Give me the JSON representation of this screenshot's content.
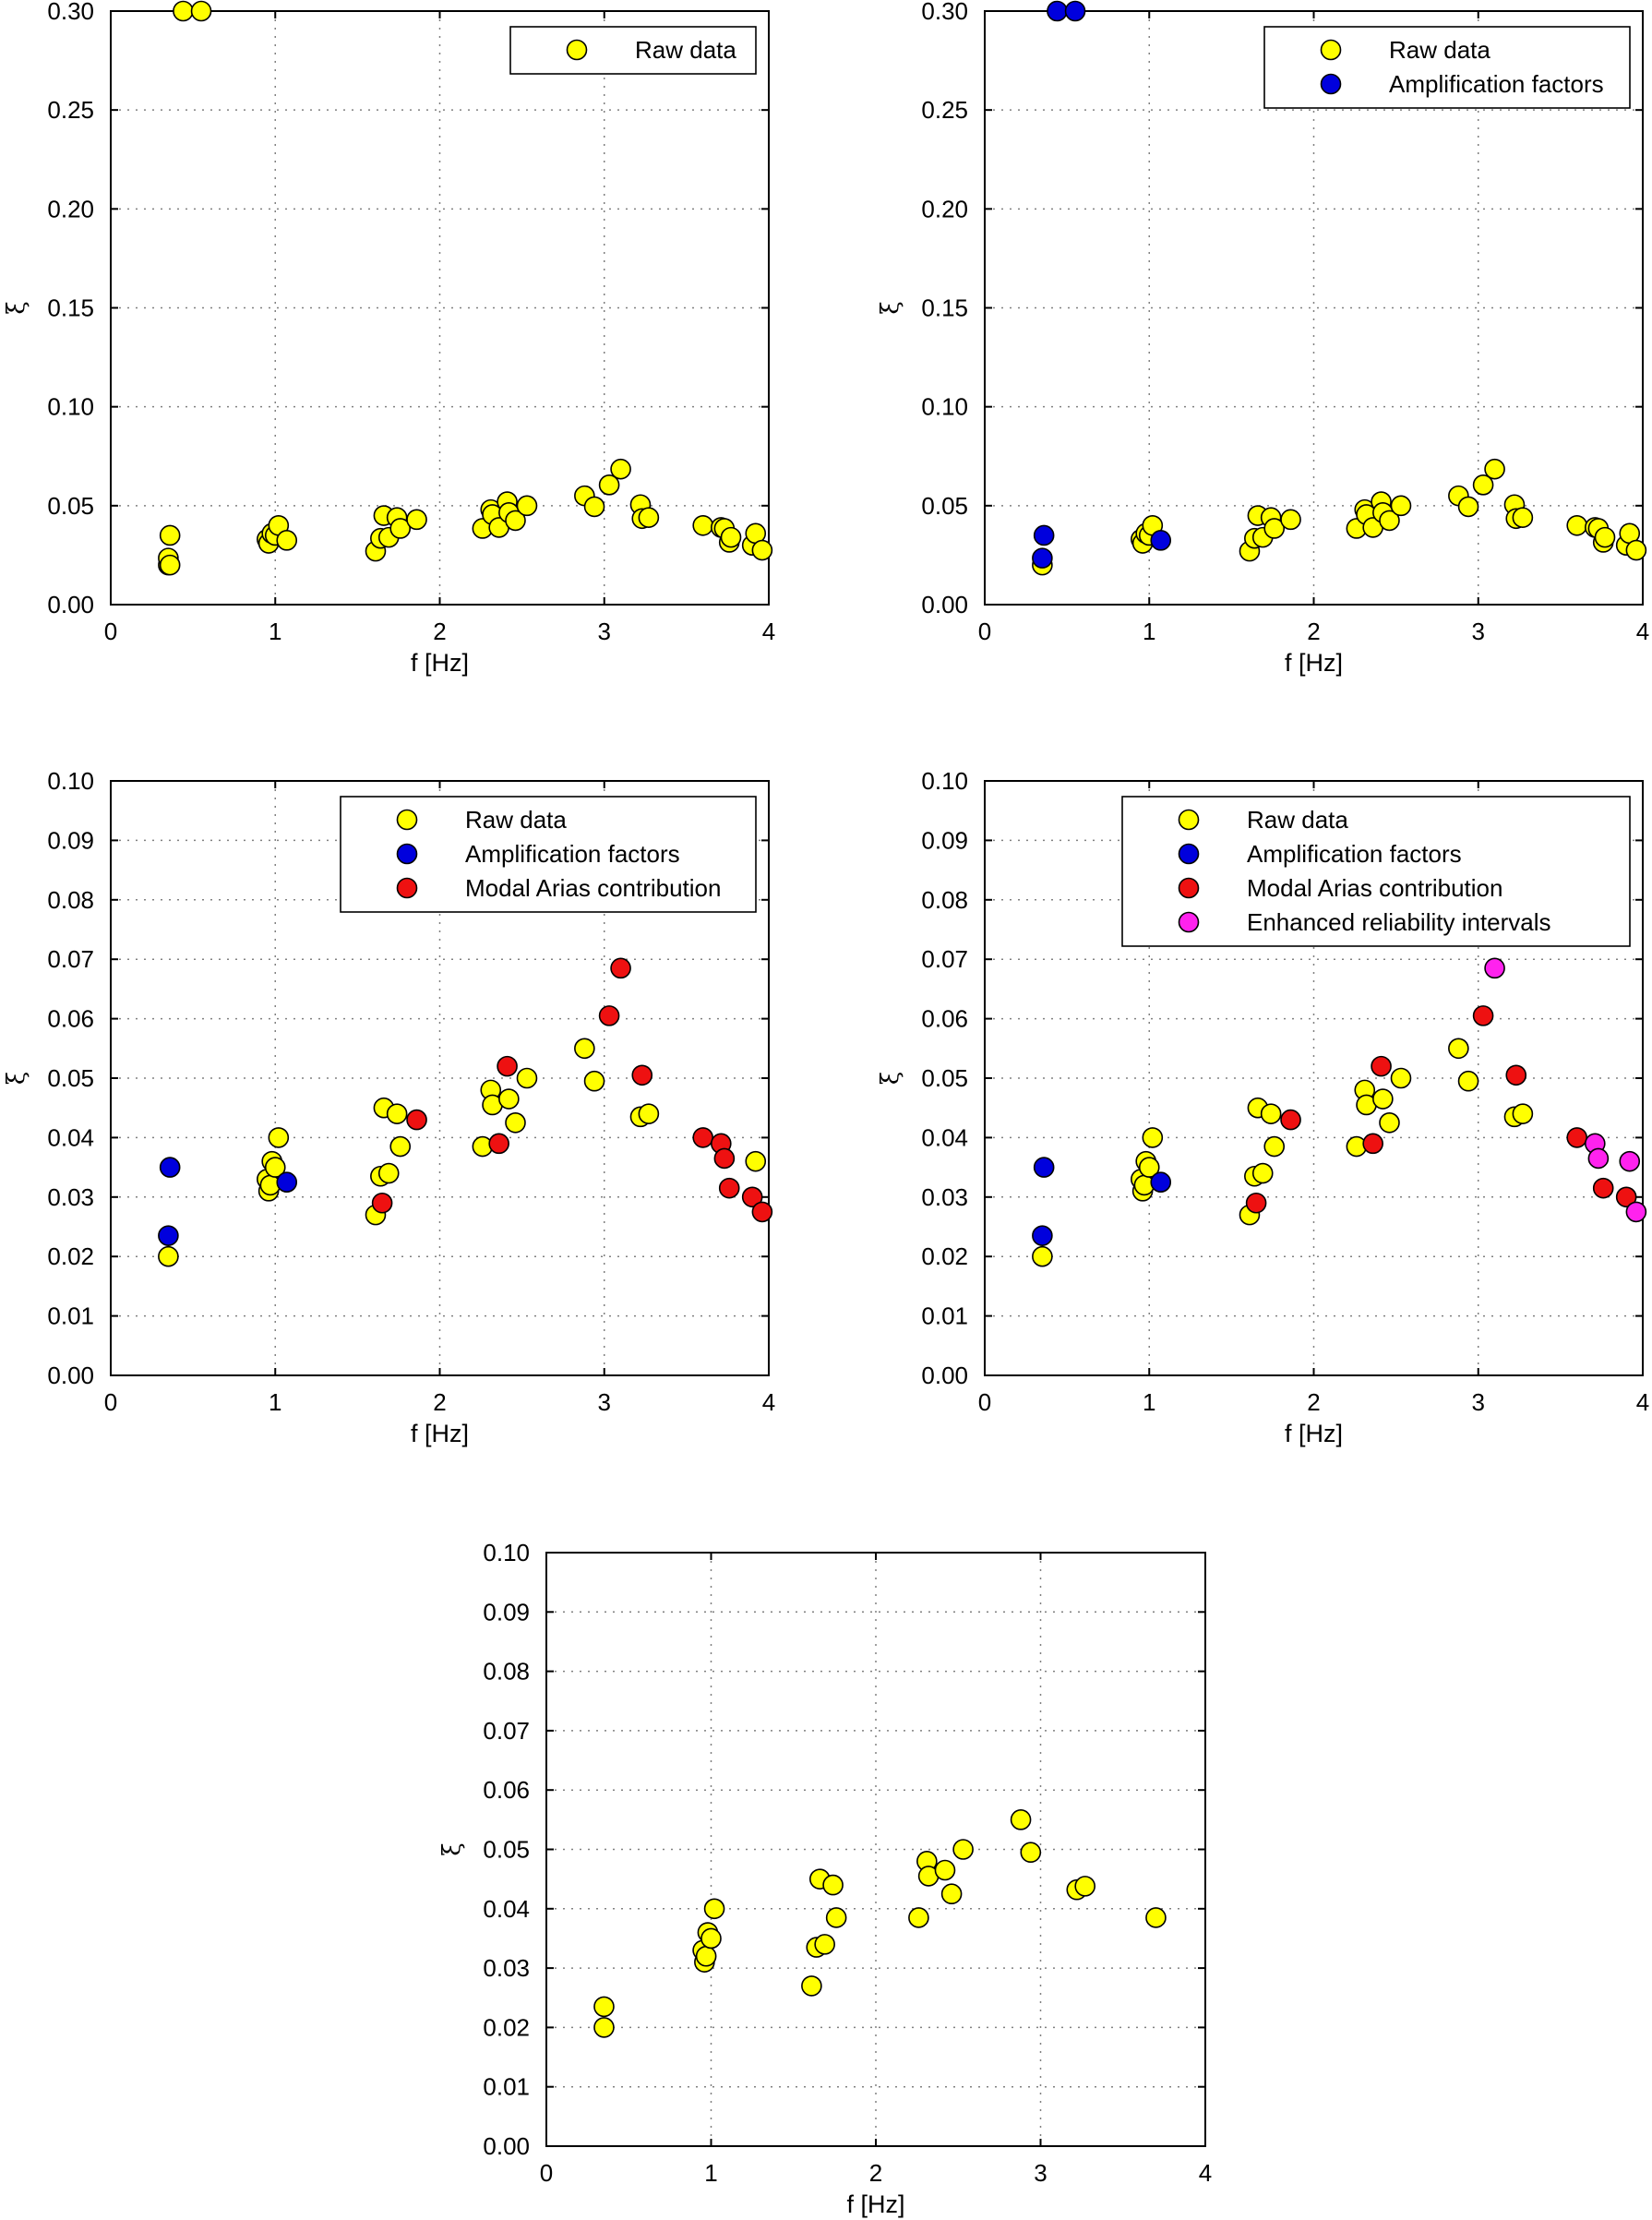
{
  "colors": {
    "raw": "#ffff00",
    "amplification": "#0000dd",
    "arias": "#ee1111",
    "enhanced": "#ff22ee",
    "edge": "#000000",
    "grid": "#808080"
  },
  "chart_data": [
    {
      "id": "panel-a",
      "type": "scatter",
      "xlabel": "f [Hz]",
      "ylabel": "ξ",
      "xlim": [
        0,
        4
      ],
      "ylim": [
        0,
        0.3
      ],
      "xticks": [
        0,
        1,
        2,
        3,
        4
      ],
      "xtick_labels": [
        "0",
        "1",
        "2",
        "3",
        "4"
      ],
      "yticks": [
        0,
        0.05,
        0.1,
        0.15,
        0.2,
        0.25,
        0.3
      ],
      "ytick_labels": [
        "0.00",
        "0.05",
        "0.10",
        "0.15",
        "0.20",
        "0.25",
        "0.30"
      ],
      "grid": true,
      "legend_position": "top-right",
      "legend": [
        {
          "label": "Raw data",
          "color_key": "raw"
        }
      ],
      "series": [
        {
          "name": "Raw data",
          "color_key": "raw",
          "points": [
            [
              0.35,
              0.02
            ],
            [
              0.35,
              0.0235
            ],
            [
              0.36,
              0.035
            ],
            [
              0.36,
              0.02
            ],
            [
              0.44,
              0.3
            ],
            [
              0.55,
              0.3
            ],
            [
              0.95,
              0.033
            ],
            [
              0.96,
              0.031
            ],
            [
              0.98,
              0.036
            ],
            [
              1.0,
              0.035
            ],
            [
              1.02,
              0.04
            ],
            [
              1.07,
              0.0325
            ],
            [
              1.61,
              0.027
            ],
            [
              1.64,
              0.0335
            ],
            [
              1.66,
              0.045
            ],
            [
              1.69,
              0.034
            ],
            [
              1.74,
              0.044
            ],
            [
              1.76,
              0.0385
            ],
            [
              1.86,
              0.043
            ],
            [
              2.26,
              0.0385
            ],
            [
              2.31,
              0.048
            ],
            [
              2.32,
              0.0455
            ],
            [
              2.36,
              0.039
            ],
            [
              2.41,
              0.052
            ],
            [
              2.42,
              0.0465
            ],
            [
              2.46,
              0.0425
            ],
            [
              2.53,
              0.05
            ],
            [
              2.88,
              0.055
            ],
            [
              2.94,
              0.0495
            ],
            [
              3.03,
              0.0605
            ],
            [
              3.1,
              0.0685
            ],
            [
              3.22,
              0.0505
            ],
            [
              3.23,
              0.0435
            ],
            [
              3.27,
              0.044
            ],
            [
              3.6,
              0.04
            ],
            [
              3.71,
              0.039
            ],
            [
              3.73,
              0.0385
            ],
            [
              3.76,
              0.0315
            ],
            [
              3.77,
              0.034
            ],
            [
              3.9,
              0.03
            ],
            [
              3.92,
              0.036
            ],
            [
              3.96,
              0.0275
            ]
          ]
        }
      ]
    },
    {
      "id": "panel-b",
      "type": "scatter",
      "xlabel": "f [Hz]",
      "ylabel": "ξ",
      "xlim": [
        0,
        4
      ],
      "ylim": [
        0,
        0.3
      ],
      "xticks": [
        0,
        1,
        2,
        3,
        4
      ],
      "xtick_labels": [
        "0",
        "1",
        "2",
        "3",
        "4"
      ],
      "yticks": [
        0,
        0.05,
        0.1,
        0.15,
        0.2,
        0.25,
        0.3
      ],
      "ytick_labels": [
        "0.00",
        "0.05",
        "0.10",
        "0.15",
        "0.20",
        "0.25",
        "0.30"
      ],
      "grid": true,
      "legend_position": "top-right",
      "legend": [
        {
          "label": "Raw data",
          "color_key": "raw"
        },
        {
          "label": "Amplification factors",
          "color_key": "amplification"
        }
      ],
      "series": [
        {
          "name": "Raw data",
          "color_key": "raw",
          "points": [
            [
              0.35,
              0.02
            ],
            [
              0.95,
              0.033
            ],
            [
              0.96,
              0.031
            ],
            [
              0.98,
              0.036
            ],
            [
              1.0,
              0.035
            ],
            [
              1.02,
              0.04
            ],
            [
              1.61,
              0.027
            ],
            [
              1.64,
              0.0335
            ],
            [
              1.66,
              0.045
            ],
            [
              1.69,
              0.034
            ],
            [
              1.74,
              0.044
            ],
            [
              1.76,
              0.0385
            ],
            [
              1.86,
              0.043
            ],
            [
              2.26,
              0.0385
            ],
            [
              2.31,
              0.048
            ],
            [
              2.32,
              0.0455
            ],
            [
              2.36,
              0.039
            ],
            [
              2.41,
              0.052
            ],
            [
              2.42,
              0.0465
            ],
            [
              2.46,
              0.0425
            ],
            [
              2.53,
              0.05
            ],
            [
              2.88,
              0.055
            ],
            [
              2.94,
              0.0495
            ],
            [
              3.03,
              0.0605
            ],
            [
              3.1,
              0.0685
            ],
            [
              3.22,
              0.0505
            ],
            [
              3.23,
              0.0435
            ],
            [
              3.27,
              0.044
            ],
            [
              3.6,
              0.04
            ],
            [
              3.71,
              0.039
            ],
            [
              3.73,
              0.0385
            ],
            [
              3.76,
              0.0315
            ],
            [
              3.77,
              0.034
            ],
            [
              3.9,
              0.03
            ],
            [
              3.92,
              0.036
            ],
            [
              3.96,
              0.0275
            ]
          ]
        },
        {
          "name": "Amplification factors",
          "color_key": "amplification",
          "points": [
            [
              0.35,
              0.0235
            ],
            [
              0.36,
              0.035
            ],
            [
              1.07,
              0.0325
            ],
            [
              0.44,
              0.3
            ],
            [
              0.55,
              0.3
            ]
          ]
        }
      ]
    },
    {
      "id": "panel-c",
      "type": "scatter",
      "xlabel": "f [Hz]",
      "ylabel": "ξ",
      "xlim": [
        0,
        4
      ],
      "ylim": [
        0,
        0.1
      ],
      "xticks": [
        0,
        1,
        2,
        3,
        4
      ],
      "xtick_labels": [
        "0",
        "1",
        "2",
        "3",
        "4"
      ],
      "yticks": [
        0,
        0.01,
        0.02,
        0.03,
        0.04,
        0.05,
        0.06,
        0.07,
        0.08,
        0.09,
        0.1
      ],
      "ytick_labels": [
        "0.00",
        "0.01",
        "0.02",
        "0.03",
        "0.04",
        "0.05",
        "0.06",
        "0.07",
        "0.08",
        "0.09",
        "0.10"
      ],
      "grid": true,
      "legend_position": "top-right",
      "legend": [
        {
          "label": "Raw data",
          "color_key": "raw"
        },
        {
          "label": "Amplification factors",
          "color_key": "amplification"
        },
        {
          "label": "Modal Arias contribution",
          "color_key": "arias"
        }
      ],
      "series": [
        {
          "name": "Raw data",
          "color_key": "raw",
          "points": [
            [
              0.35,
              0.02
            ],
            [
              0.95,
              0.033
            ],
            [
              0.96,
              0.031
            ],
            [
              0.97,
              0.032
            ],
            [
              0.98,
              0.036
            ],
            [
              1.0,
              0.035
            ],
            [
              1.02,
              0.04
            ],
            [
              1.61,
              0.027
            ],
            [
              1.64,
              0.0335
            ],
            [
              1.66,
              0.045
            ],
            [
              1.69,
              0.034
            ],
            [
              1.74,
              0.044
            ],
            [
              1.76,
              0.0385
            ],
            [
              2.26,
              0.0385
            ],
            [
              2.31,
              0.048
            ],
            [
              2.32,
              0.0455
            ],
            [
              2.42,
              0.0465
            ],
            [
              2.46,
              0.0425
            ],
            [
              2.53,
              0.05
            ],
            [
              2.88,
              0.055
            ],
            [
              2.94,
              0.0495
            ],
            [
              3.22,
              0.0435
            ],
            [
              3.27,
              0.044
            ],
            [
              3.92,
              0.036
            ]
          ]
        },
        {
          "name": "Amplification factors",
          "color_key": "amplification",
          "points": [
            [
              0.35,
              0.0235
            ],
            [
              0.36,
              0.035
            ],
            [
              1.07,
              0.0325
            ]
          ]
        },
        {
          "name": "Modal Arias contribution",
          "color_key": "arias",
          "points": [
            [
              1.65,
              0.029
            ],
            [
              1.86,
              0.043
            ],
            [
              2.36,
              0.039
            ],
            [
              2.41,
              0.052
            ],
            [
              3.03,
              0.0605
            ],
            [
              3.1,
              0.0685
            ],
            [
              3.23,
              0.0505
            ],
            [
              3.6,
              0.04
            ],
            [
              3.71,
              0.039
            ],
            [
              3.73,
              0.0365
            ],
            [
              3.76,
              0.0315
            ],
            [
              3.9,
              0.03
            ],
            [
              3.96,
              0.0275
            ]
          ]
        }
      ]
    },
    {
      "id": "panel-d",
      "type": "scatter",
      "xlabel": "f [Hz]",
      "ylabel": "ξ",
      "xlim": [
        0,
        4
      ],
      "ylim": [
        0,
        0.1
      ],
      "xticks": [
        0,
        1,
        2,
        3,
        4
      ],
      "xtick_labels": [
        "0",
        "1",
        "2",
        "3",
        "4"
      ],
      "yticks": [
        0,
        0.01,
        0.02,
        0.03,
        0.04,
        0.05,
        0.06,
        0.07,
        0.08,
        0.09,
        0.1
      ],
      "ytick_labels": [
        "0.00",
        "0.01",
        "0.02",
        "0.03",
        "0.04",
        "0.05",
        "0.06",
        "0.07",
        "0.08",
        "0.09",
        "0.10"
      ],
      "grid": true,
      "legend_position": "top-right",
      "legend": [
        {
          "label": "Raw data",
          "color_key": "raw"
        },
        {
          "label": "Amplification factors",
          "color_key": "amplification"
        },
        {
          "label": "Modal Arias contribution",
          "color_key": "arias"
        },
        {
          "label": "Enhanced reliability intervals",
          "color_key": "enhanced"
        }
      ],
      "series": [
        {
          "name": "Raw data",
          "color_key": "raw",
          "points": [
            [
              0.35,
              0.02
            ],
            [
              0.95,
              0.033
            ],
            [
              0.96,
              0.031
            ],
            [
              0.97,
              0.032
            ],
            [
              0.98,
              0.036
            ],
            [
              1.0,
              0.035
            ],
            [
              1.02,
              0.04
            ],
            [
              1.61,
              0.027
            ],
            [
              1.64,
              0.0335
            ],
            [
              1.66,
              0.045
            ],
            [
              1.69,
              0.034
            ],
            [
              1.74,
              0.044
            ],
            [
              1.76,
              0.0385
            ],
            [
              2.26,
              0.0385
            ],
            [
              2.31,
              0.048
            ],
            [
              2.32,
              0.0455
            ],
            [
              2.42,
              0.0465
            ],
            [
              2.46,
              0.0425
            ],
            [
              2.53,
              0.05
            ],
            [
              2.88,
              0.055
            ],
            [
              2.94,
              0.0495
            ],
            [
              3.22,
              0.0435
            ],
            [
              3.27,
              0.044
            ]
          ]
        },
        {
          "name": "Amplification factors",
          "color_key": "amplification",
          "points": [
            [
              0.35,
              0.0235
            ],
            [
              0.36,
              0.035
            ],
            [
              1.07,
              0.0325
            ]
          ]
        },
        {
          "name": "Modal Arias contribution",
          "color_key": "arias",
          "points": [
            [
              1.65,
              0.029
            ],
            [
              1.86,
              0.043
            ],
            [
              2.36,
              0.039
            ],
            [
              2.41,
              0.052
            ],
            [
              3.03,
              0.0605
            ],
            [
              3.23,
              0.0505
            ],
            [
              3.6,
              0.04
            ],
            [
              3.76,
              0.0315
            ],
            [
              3.9,
              0.03
            ]
          ]
        },
        {
          "name": "Enhanced reliability intervals",
          "color_key": "enhanced",
          "points": [
            [
              3.1,
              0.0685
            ],
            [
              3.71,
              0.039
            ],
            [
              3.73,
              0.0365
            ],
            [
              3.92,
              0.036
            ],
            [
              3.96,
              0.0275
            ]
          ]
        }
      ]
    },
    {
      "id": "panel-e",
      "type": "scatter",
      "xlabel": "f [Hz]",
      "ylabel": "ξ",
      "xlim": [
        0,
        4
      ],
      "ylim": [
        0,
        0.1
      ],
      "xticks": [
        0,
        1,
        2,
        3,
        4
      ],
      "xtick_labels": [
        "0",
        "1",
        "2",
        "3",
        "4"
      ],
      "yticks": [
        0,
        0.01,
        0.02,
        0.03,
        0.04,
        0.05,
        0.06,
        0.07,
        0.08,
        0.09,
        0.1
      ],
      "ytick_labels": [
        "0.00",
        "0.01",
        "0.02",
        "0.03",
        "0.04",
        "0.05",
        "0.06",
        "0.07",
        "0.08",
        "0.09",
        "0.10"
      ],
      "grid": true,
      "legend": [],
      "series": [
        {
          "name": "Raw data",
          "color_key": "raw",
          "points": [
            [
              0.35,
              0.02
            ],
            [
              0.35,
              0.0235
            ],
            [
              0.95,
              0.033
            ],
            [
              0.96,
              0.031
            ],
            [
              0.97,
              0.032
            ],
            [
              0.98,
              0.036
            ],
            [
              1.0,
              0.035
            ],
            [
              1.02,
              0.04
            ],
            [
              1.61,
              0.027
            ],
            [
              1.64,
              0.0335
            ],
            [
              1.66,
              0.045
            ],
            [
              1.69,
              0.034
            ],
            [
              1.74,
              0.044
            ],
            [
              1.76,
              0.0385
            ],
            [
              2.26,
              0.0385
            ],
            [
              2.31,
              0.048
            ],
            [
              2.32,
              0.0455
            ],
            [
              2.42,
              0.0465
            ],
            [
              2.46,
              0.0425
            ],
            [
              2.53,
              0.05
            ],
            [
              2.88,
              0.055
            ],
            [
              2.94,
              0.0495
            ],
            [
              3.22,
              0.0432
            ],
            [
              3.27,
              0.0438
            ],
            [
              3.7,
              0.0385
            ]
          ]
        }
      ]
    }
  ]
}
